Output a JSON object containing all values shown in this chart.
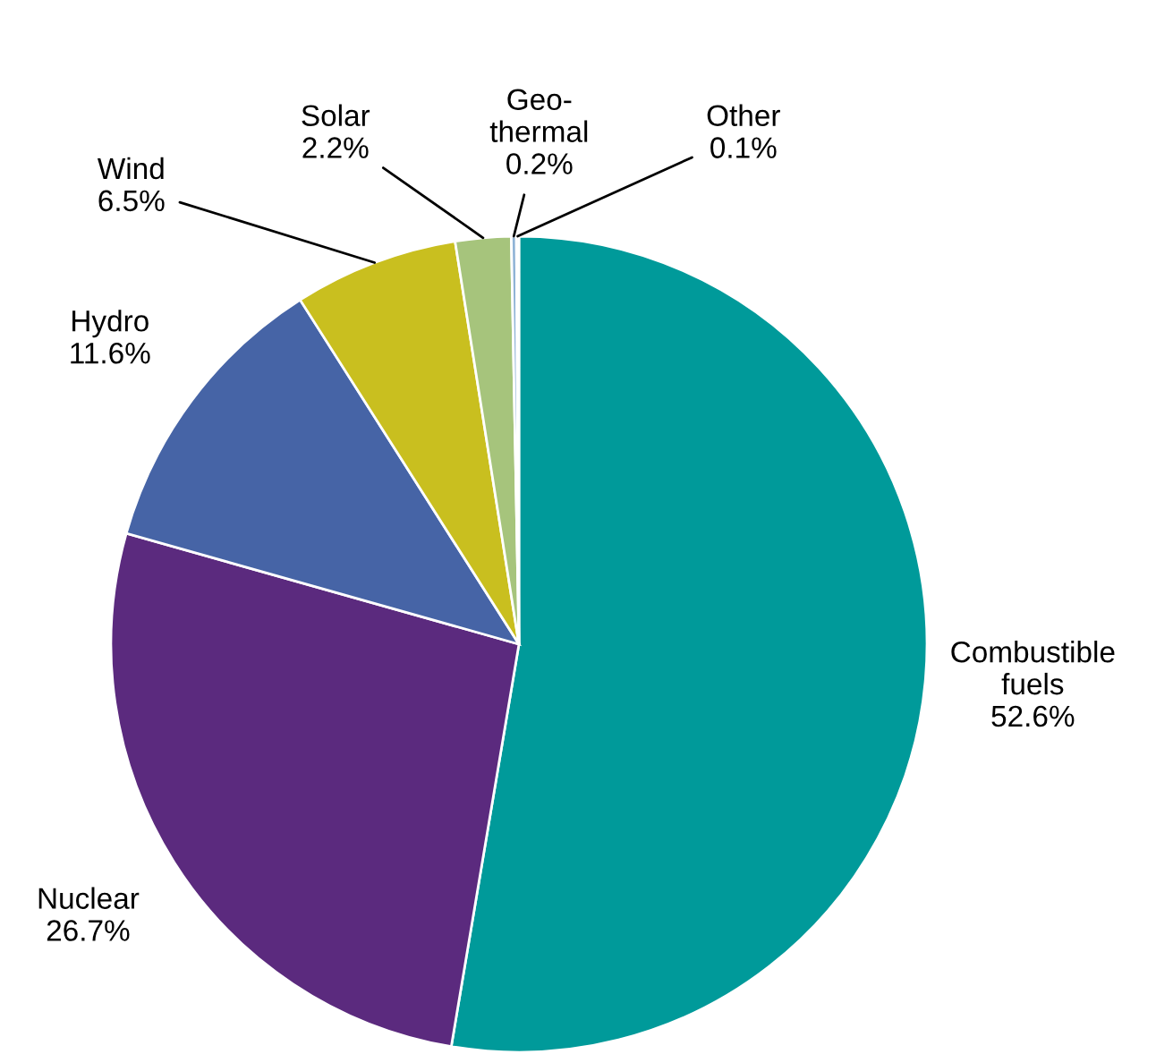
{
  "chart_data": {
    "type": "pie",
    "categories": [
      "Combustible fuels",
      "Nuclear",
      "Hydro",
      "Wind",
      "Solar",
      "Geo-\nthermal",
      "Other"
    ],
    "values": [
      52.6,
      26.7,
      11.6,
      6.5,
      2.2,
      0.2,
      0.1
    ],
    "colors": [
      "#009a9a",
      "#5b2a7e",
      "#4664a6",
      "#c9bf1f",
      "#a6c47c",
      "#8fb3d6",
      "#d4d4d4"
    ],
    "value_labels": [
      "52.6%",
      "26.7%",
      "11.6%",
      "6.5%",
      "2.2%",
      "0.2%",
      "0.1%"
    ],
    "legend": false
  }
}
